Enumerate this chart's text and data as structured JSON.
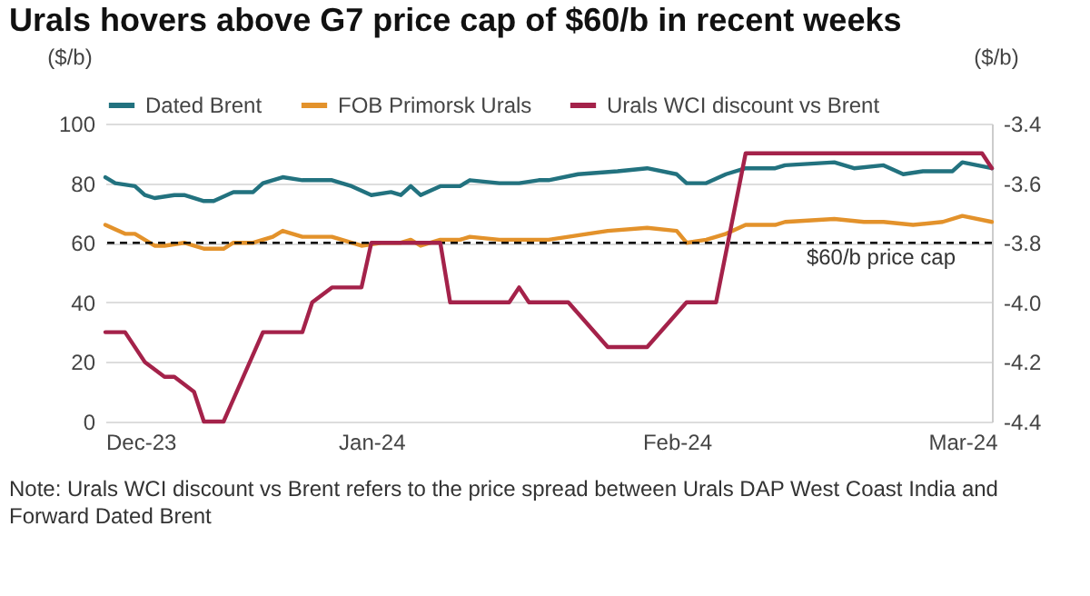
{
  "chart_data": {
    "type": "line",
    "title": "Urals hovers above G7 price cap of $60/b in recent weeks",
    "ylabel": "($/b)",
    "y2label": "($/b)",
    "xlim": [
      "2023-12-05",
      "2024-03-04"
    ],
    "xticks": [
      {
        "value": "2023-12-05",
        "label": "Dec-23"
      },
      {
        "value": "2024-01-01",
        "label": "Jan-24"
      },
      {
        "value": "2024-02-01",
        "label": "Feb-24"
      },
      {
        "value": "2024-03-01",
        "label": "Mar-24"
      }
    ],
    "ylim": [
      0,
      100
    ],
    "yticks": [
      0,
      20,
      40,
      60,
      80,
      100
    ],
    "y2lim": [
      -4.4,
      -3.4
    ],
    "y2ticks": [
      -4.4,
      -4.2,
      {
        "value": -4,
        "label": "-4.0"
      },
      -3.8,
      -3.6,
      -3.4
    ],
    "grid": "y",
    "legend": "top",
    "series": [
      {
        "name": "Dated Brent",
        "color": "#22727f",
        "x": [
          "2023-12-05",
          "2023-12-06",
          "2023-12-08",
          "2023-12-09",
          "2023-12-10",
          "2023-12-12",
          "2023-12-13",
          "2023-12-15",
          "2023-12-16",
          "2023-12-18",
          "2023-12-20",
          "2023-12-21",
          "2023-12-23",
          "2023-12-25",
          "2023-12-28",
          "2023-12-30",
          "2024-01-01",
          "2024-01-03",
          "2024-01-04",
          "2024-01-05",
          "2024-01-06",
          "2024-01-08",
          "2024-01-10",
          "2024-01-11",
          "2024-01-14",
          "2024-01-16",
          "2024-01-18",
          "2024-01-19",
          "2024-01-22",
          "2024-01-26",
          "2024-01-29",
          "2024-02-01",
          "2024-02-02",
          "2024-02-04",
          "2024-02-06",
          "2024-02-08",
          "2024-02-11",
          "2024-02-12",
          "2024-02-17",
          "2024-02-19",
          "2024-02-22",
          "2024-02-24",
          "2024-02-26",
          "2024-02-29",
          "2024-03-01",
          "2024-03-04"
        ],
        "values": [
          82,
          80,
          79,
          76,
          75,
          76,
          76,
          74,
          74,
          77,
          77,
          80,
          82,
          81,
          81,
          79,
          76,
          77,
          76,
          79,
          76,
          79,
          79,
          81,
          80,
          80,
          81,
          81,
          83,
          84,
          85,
          83,
          80,
          80,
          83,
          85,
          85,
          86,
          87,
          85,
          86,
          83,
          84,
          84,
          87,
          85
        ]
      },
      {
        "name": "FOB Primorsk Urals",
        "color": "#e3922b",
        "x": [
          "2023-12-05",
          "2023-12-07",
          "2023-12-08",
          "2023-12-10",
          "2023-12-11",
          "2023-12-13",
          "2023-12-15",
          "2023-12-17",
          "2023-12-18",
          "2023-12-20",
          "2023-12-22",
          "2023-12-23",
          "2023-12-25",
          "2023-12-28",
          "2023-12-30",
          "2023-12-31",
          "2024-01-02",
          "2024-01-04",
          "2024-01-05",
          "2024-01-06",
          "2024-01-08",
          "2024-01-10",
          "2024-01-11",
          "2024-01-14",
          "2024-01-16",
          "2024-01-19",
          "2024-01-21",
          "2024-01-25",
          "2024-01-29",
          "2024-02-01",
          "2024-02-02",
          "2024-02-04",
          "2024-02-06",
          "2024-02-08",
          "2024-02-11",
          "2024-02-12",
          "2024-02-17",
          "2024-02-20",
          "2024-02-22",
          "2024-02-25",
          "2024-02-28",
          "2024-03-01",
          "2024-03-04"
        ],
        "values": [
          66,
          63,
          63,
          59,
          59,
          60,
          58,
          58,
          60,
          60,
          62,
          64,
          62,
          62,
          60,
          59,
          60,
          60,
          61,
          59,
          61,
          61,
          62,
          61,
          61,
          61,
          62,
          64,
          65,
          64,
          60,
          61,
          63,
          66,
          66,
          67,
          68,
          67,
          67,
          66,
          67,
          69,
          67
        ]
      },
      {
        "name": "Urals WCI discount vs Brent",
        "color": "#a4224a",
        "axis": "y2",
        "x": [
          "2023-12-05",
          "2023-12-07",
          "2023-12-09",
          "2023-12-11",
          "2023-12-12",
          "2023-12-14",
          "2023-12-15",
          "2023-12-17",
          "2023-12-21",
          "2023-12-25",
          "2023-12-26",
          "2023-12-28",
          "2023-12-31",
          "2024-01-01",
          "2024-01-08",
          "2024-01-09",
          "2024-01-15",
          "2024-01-16",
          "2024-01-17",
          "2024-01-21",
          "2024-01-25",
          "2024-01-29",
          "2024-02-02",
          "2024-02-05",
          "2024-02-08",
          "2024-03-03",
          "2024-03-04"
        ],
        "values": [
          -4.1,
          -4.1,
          -4.2,
          -4.25,
          -4.25,
          -4.3,
          -4.4,
          -4.4,
          -4.1,
          -4.1,
          -4.0,
          -3.95,
          -3.95,
          -3.8,
          -3.8,
          -4.0,
          -4.0,
          -3.95,
          -4.0,
          -4.0,
          -4.15,
          -4.15,
          -4.0,
          -4.0,
          -3.5,
          -3.5,
          -3.55
        ]
      }
    ],
    "ref_lines": [
      {
        "axis": "y",
        "value": 60,
        "label": "$60/b price cap",
        "color": "#000000",
        "line_style": "dashed"
      }
    ],
    "annotations": [
      "Note: Urals WCI discount vs Brent refers to the price spread between Urals DAP West Coast India and Forward Dated Brent"
    ]
  }
}
